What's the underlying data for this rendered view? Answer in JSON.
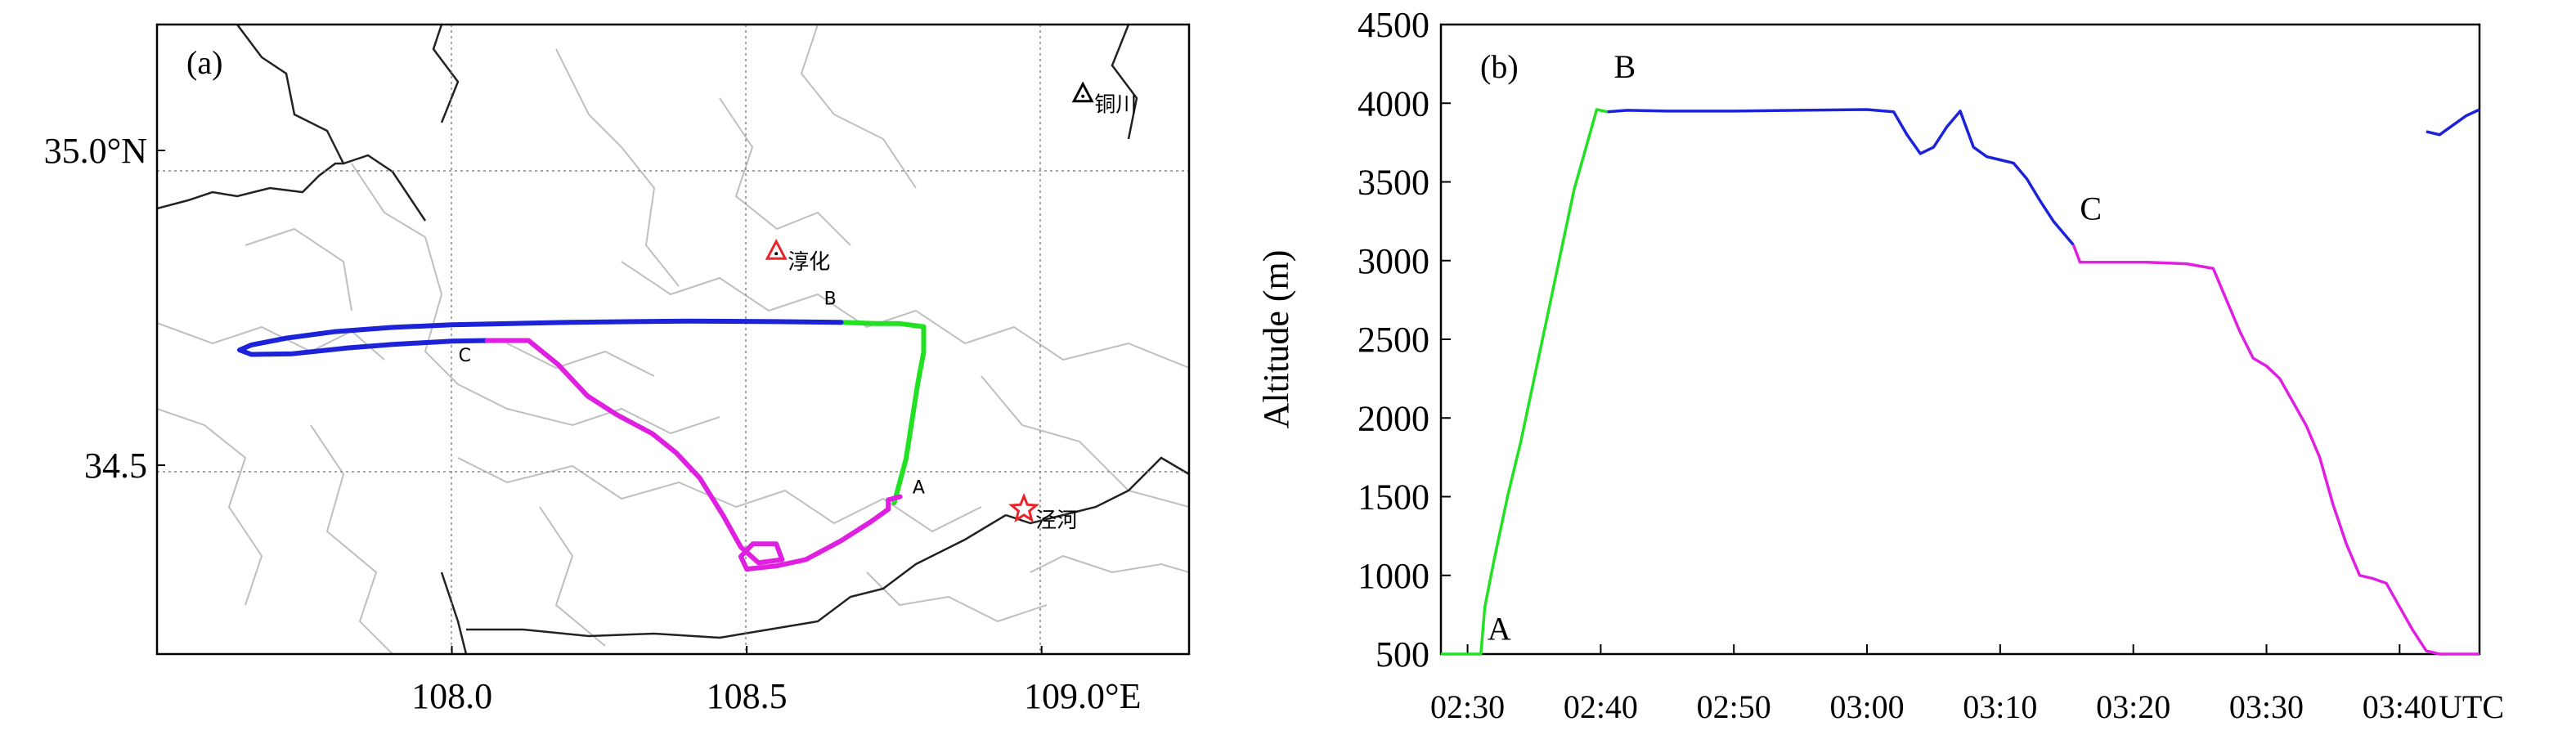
{
  "chart_data": [
    {
      "type": "map",
      "panel_label": "(a)",
      "xlim": [
        107.5,
        109.25
      ],
      "ylim": [
        34.2,
        35.2
      ],
      "x_ticks": [
        {
          "value": 108.0,
          "label": "108.0"
        },
        {
          "value": 108.5,
          "label": "108.5"
        },
        {
          "value": 109.0,
          "label": "109.0°E"
        }
      ],
      "y_ticks": [
        {
          "value": 34.5,
          "label": "34.5"
        },
        {
          "value": 35.0,
          "label": "35.0°N"
        }
      ],
      "stations": [
        {
          "name": "淳化",
          "lon": 108.55,
          "lat": 34.84,
          "symbol": "triangle",
          "color": "#e8242a"
        },
        {
          "name": "铜川",
          "lon": 109.07,
          "lat": 35.09,
          "symbol": "triangle",
          "color": "#000000"
        },
        {
          "name": "泾河",
          "lon": 108.97,
          "lat": 34.43,
          "symbol": "star",
          "color": "#e8242a"
        }
      ],
      "point_labels": [
        {
          "label": "A",
          "lon": 108.77,
          "lat": 34.45
        },
        {
          "label": "B",
          "lon": 108.62,
          "lat": 34.75
        },
        {
          "label": "C",
          "lon": 108.0,
          "lat": 34.66
        }
      ],
      "series": [
        {
          "segment": "A-B",
          "color": "#22e022",
          "points": [
            [
              108.75,
              34.44
            ],
            [
              108.77,
              34.51
            ],
            [
              108.78,
              34.57
            ],
            [
              108.79,
              34.63
            ],
            [
              108.8,
              34.68
            ],
            [
              108.8,
              34.72
            ],
            [
              108.76,
              34.725
            ],
            [
              108.72,
              34.725
            ],
            [
              108.66,
              34.727
            ]
          ]
        },
        {
          "segment": "B-C",
          "color": "#1c22d8",
          "points": [
            [
              108.66,
              34.727
            ],
            [
              108.55,
              34.728
            ],
            [
              108.4,
              34.729
            ],
            [
              108.2,
              34.727
            ],
            [
              108.0,
              34.723
            ],
            [
              107.9,
              34.719
            ],
            [
              107.8,
              34.712
            ],
            [
              107.72,
              34.702
            ],
            [
              107.66,
              34.691
            ],
            [
              107.64,
              34.683
            ],
            [
              107.66,
              34.676
            ],
            [
              107.73,
              34.677
            ],
            [
              107.82,
              34.686
            ],
            [
              107.9,
              34.692
            ],
            [
              108.0,
              34.697
            ],
            [
              108.06,
              34.698
            ]
          ]
        },
        {
          "segment": "C-A",
          "color": "#e020e0",
          "points": [
            [
              108.06,
              34.698
            ],
            [
              108.13,
              34.698
            ],
            [
              108.18,
              34.66
            ],
            [
              108.23,
              34.61
            ],
            [
              108.28,
              34.58
            ],
            [
              108.34,
              34.55
            ],
            [
              108.38,
              34.52
            ],
            [
              108.42,
              34.48
            ],
            [
              108.46,
              34.42
            ],
            [
              108.49,
              34.37
            ],
            [
              108.52,
              34.345
            ],
            [
              108.56,
              34.35
            ],
            [
              108.55,
              34.375
            ],
            [
              108.51,
              34.375
            ],
            [
              108.49,
              34.355
            ],
            [
              108.5,
              34.335
            ],
            [
              108.55,
              34.34
            ],
            [
              108.6,
              34.35
            ],
            [
              108.66,
              34.38
            ],
            [
              108.71,
              34.41
            ],
            [
              108.74,
              34.43
            ],
            [
              108.74,
              34.445
            ],
            [
              108.76,
              34.45
            ]
          ]
        }
      ]
    },
    {
      "type": "line",
      "panel_label": "(b)",
      "ylabel": "Altitude (m)",
      "x_unit_label": "UTC",
      "xlim": [
        148,
        226
      ],
      "ylim": [
        500,
        4500
      ],
      "x_ticks": [
        {
          "value": 150,
          "label": "02:30"
        },
        {
          "value": 160,
          "label": "02:40"
        },
        {
          "value": 170,
          "label": "02:50"
        },
        {
          "value": 180,
          "label": "03:00"
        },
        {
          "value": 190,
          "label": "03:10"
        },
        {
          "value": 200,
          "label": "03:20"
        },
        {
          "value": 210,
          "label": "03:30"
        },
        {
          "value": 220,
          "label": "03:40"
        }
      ],
      "y_ticks": [
        500,
        1000,
        1500,
        2000,
        2500,
        3000,
        3500,
        4000,
        4500
      ],
      "point_labels": [
        {
          "label": "A",
          "x": 151,
          "y": 560
        },
        {
          "label": "B",
          "x": 160.5,
          "y": 4130
        },
        {
          "label": "C",
          "x": 195.5,
          "y": 3230
        }
      ],
      "series": [
        {
          "segment": "A-B",
          "color": "#22e022",
          "points": [
            [
              148,
              500
            ],
            [
              151,
              500
            ],
            [
              151.3,
              800
            ],
            [
              152,
              1100
            ],
            [
              153,
              1500
            ],
            [
              154,
              1850
            ],
            [
              155,
              2250
            ],
            [
              156,
              2650
            ],
            [
              157,
              3050
            ],
            [
              158,
              3450
            ],
            [
              159,
              3750
            ],
            [
              159.7,
              3960
            ],
            [
              160.5,
              3945
            ]
          ]
        },
        {
          "segment": "B-C",
          "color": "#1c22d8",
          "points": [
            [
              160.5,
              3945
            ],
            [
              162,
              3955
            ],
            [
              165,
              3950
            ],
            [
              170,
              3950
            ],
            [
              175,
              3955
            ],
            [
              180,
              3960
            ],
            [
              182,
              3945
            ],
            [
              183,
              3800
            ],
            [
              184,
              3680
            ],
            [
              185,
              3720
            ],
            [
              186,
              3850
            ],
            [
              187,
              3950
            ],
            [
              188,
              3720
            ],
            [
              189,
              3660
            ],
            [
              190,
              3640
            ],
            [
              191,
              3620
            ],
            [
              192,
              3520
            ],
            [
              193,
              3380
            ],
            [
              194,
              3250
            ],
            [
              195.5,
              3100
            ]
          ]
        },
        {
          "segment": "C-A",
          "color": "#e020e0",
          "points": [
            [
              195.5,
              3100
            ],
            [
              196,
              2990
            ],
            [
              198,
              2990
            ],
            [
              201,
              2990
            ],
            [
              204,
              2980
            ],
            [
              206,
              2950
            ],
            [
              207,
              2750
            ],
            [
              208,
              2550
            ],
            [
              209,
              2380
            ],
            [
              210,
              2330
            ],
            [
              211,
              2250
            ],
            [
              212,
              2100
            ],
            [
              213,
              1950
            ],
            [
              214,
              1750
            ],
            [
              215,
              1450
            ],
            [
              216,
              1200
            ],
            [
              217,
              1000
            ],
            [
              218,
              980
            ],
            [
              219,
              950
            ],
            [
              220,
              800
            ],
            [
              221,
              650
            ],
            [
              222,
              520
            ],
            [
              223,
              500
            ],
            [
              226,
              500
            ]
          ]
        },
        {
          "segment": "A-B-start",
          "color": "#1c22d8",
          "points": [
            [
              222,
              3820
            ],
            [
              223,
              3800
            ],
            [
              224,
              3860
            ],
            [
              225,
              3920
            ],
            [
              226,
              3960
            ]
          ]
        }
      ]
    }
  ]
}
